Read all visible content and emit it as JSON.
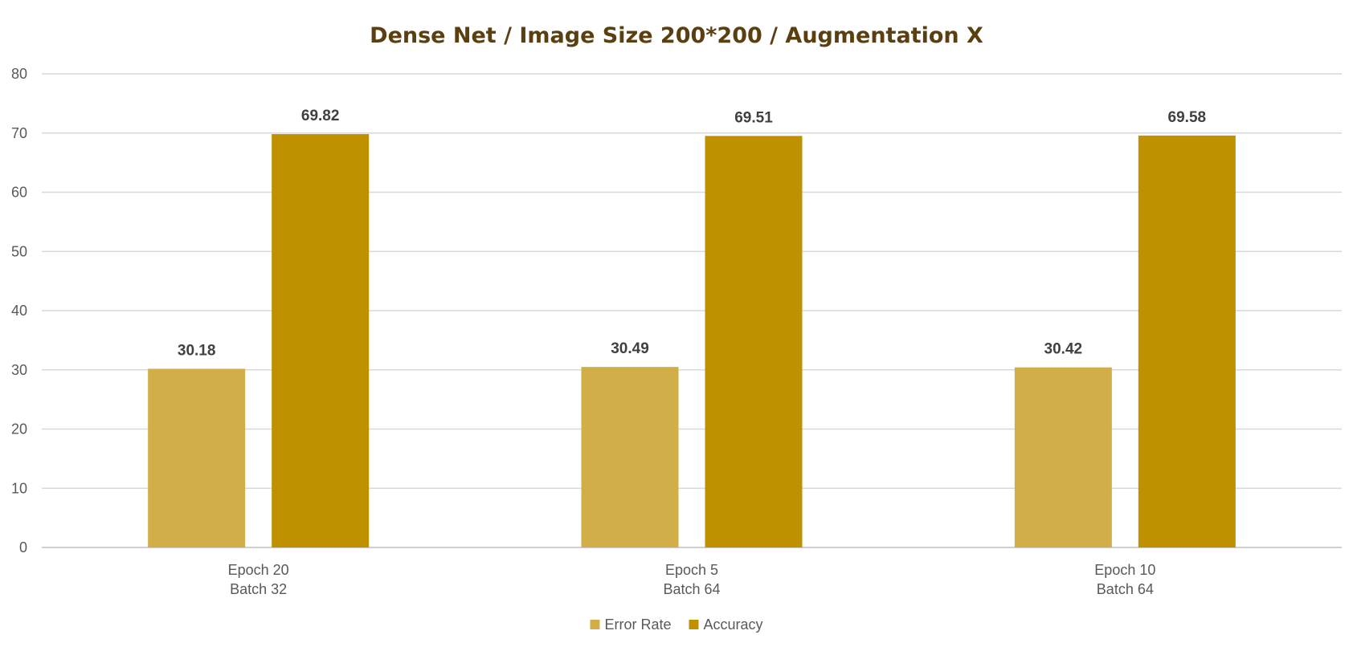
{
  "chart_data": {
    "type": "bar",
    "title": "Dense Net / Image Size 200*200 / Augmentation X",
    "title_color": "#5a4010",
    "categories": [
      [
        "Epoch 20",
        "Batch 32"
      ],
      [
        "Epoch 5",
        "Batch 64"
      ],
      [
        "Epoch 10",
        "Batch 64"
      ]
    ],
    "series": [
      {
        "name": "Error Rate",
        "color": "#d1ae48",
        "values": [
          30.18,
          30.49,
          30.42
        ]
      },
      {
        "name": "Accuracy",
        "color": "#bf9000",
        "values": [
          69.82,
          69.51,
          69.58
        ]
      }
    ],
    "data_labels": [
      [
        "30.18",
        "30.49",
        "30.42"
      ],
      [
        "69.82",
        "69.51",
        "69.58"
      ]
    ],
    "ylim": [
      0,
      80
    ],
    "yticks": [
      0,
      10,
      20,
      30,
      40,
      50,
      60,
      70,
      80
    ],
    "xlabel": "",
    "ylabel": "",
    "grid": true,
    "legend_position": "bottom"
  }
}
